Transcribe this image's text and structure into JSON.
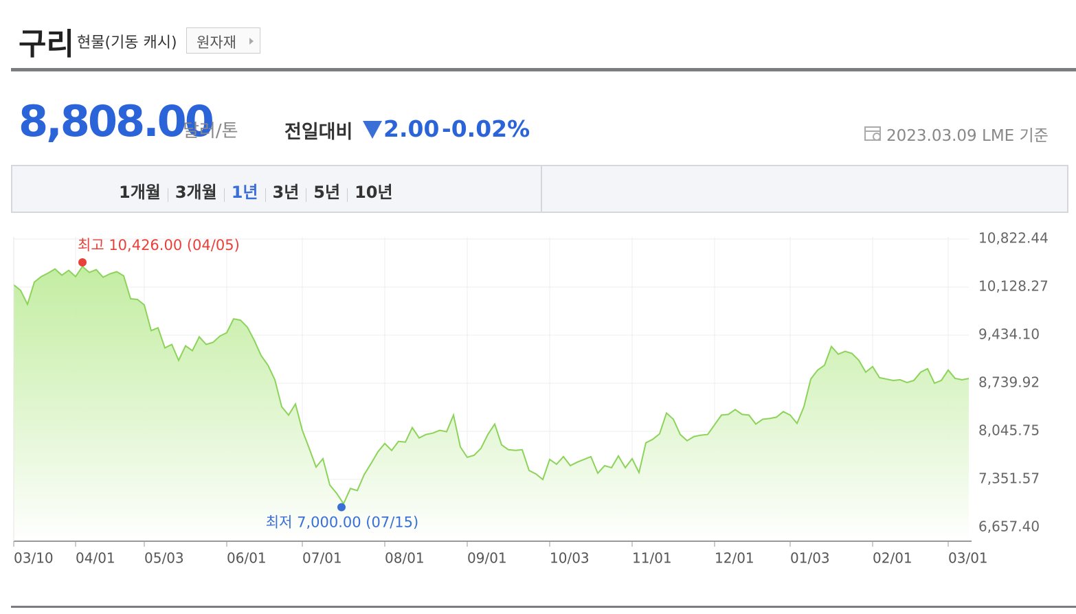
{
  "header": {
    "title": "구리",
    "subtitle": "현물(기동 캐시)",
    "button": "원자재"
  },
  "price": {
    "value": "8,808.00",
    "unit": "달러/톤",
    "change_label": "전일대비",
    "change": "2.00",
    "change_pct": "-0.02%",
    "date": "2023.03.09 LME 기준"
  },
  "tabs": {
    "items": [
      "1개월",
      "3개월",
      "1년",
      "3년",
      "5년",
      "10년"
    ],
    "selected": 2
  },
  "chart_data": {
    "type": "line",
    "color": "#8cd35a",
    "fill": true,
    "grid": true,
    "high_label": "최고 10,426.00 (04/05)",
    "high_color": "#e8413a",
    "low_label": "최저 7,000.00 (07/15)",
    "low_color": "#3a6fd8",
    "categories": [
      "03/10",
      null,
      null,
      null,
      null,
      null,
      null,
      null,
      null,
      "04/01",
      null,
      null,
      null,
      null,
      null,
      null,
      null,
      null,
      null,
      "05/03",
      null,
      null,
      null,
      null,
      null,
      null,
      null,
      null,
      null,
      null,
      null,
      "06/01",
      null,
      null,
      null,
      null,
      null,
      null,
      null,
      null,
      null,
      null,
      "07/01",
      null,
      null,
      null,
      null,
      null,
      null,
      null,
      null,
      null,
      null,
      null,
      "08/01",
      null,
      null,
      null,
      null,
      null,
      null,
      null,
      null,
      null,
      null,
      null,
      "09/01",
      null,
      null,
      null,
      null,
      null,
      null,
      null,
      null,
      null,
      null,
      null,
      "10/03",
      null,
      null,
      null,
      null,
      null,
      null,
      null,
      null,
      null,
      null,
      null,
      "11/01",
      null,
      null,
      null,
      null,
      null,
      null,
      null,
      null,
      null,
      null,
      null,
      "12/01",
      null,
      null,
      null,
      null,
      null,
      null,
      null,
      null,
      null,
      null,
      "01/03",
      null,
      null,
      null,
      null,
      null,
      null,
      null,
      null,
      null,
      null,
      null,
      "02/01",
      null,
      null,
      null,
      null,
      null,
      null,
      null,
      null,
      null,
      null,
      "03/01",
      null,
      null,
      null
    ],
    "values": [
      10160,
      10080,
      9880,
      10200,
      10280,
      10330,
      10390,
      10300,
      10370,
      10280,
      10426,
      10340,
      10380,
      10270,
      10320,
      10350,
      10290,
      9960,
      9950,
      9870,
      9500,
      9540,
      9250,
      9300,
      9070,
      9280,
      9210,
      9410,
      9300,
      9330,
      9420,
      9470,
      9670,
      9650,
      9550,
      9360,
      9140,
      9000,
      8790,
      8400,
      8280,
      8440,
      8060,
      7800,
      7530,
      7650,
      7270,
      7150,
      7000,
      7220,
      7190,
      7420,
      7580,
      7750,
      7870,
      7770,
      7900,
      7890,
      8100,
      7950,
      8000,
      8020,
      8060,
      8040,
      8280,
      7820,
      7670,
      7700,
      7800,
      8000,
      8150,
      7850,
      7780,
      7770,
      7780,
      7480,
      7430,
      7350,
      7640,
      7570,
      7680,
      7550,
      7600,
      7640,
      7680,
      7440,
      7550,
      7520,
      7690,
      7520,
      7650,
      7450,
      7880,
      7930,
      8010,
      8310,
      8220,
      8000,
      7910,
      7970,
      7990,
      8000,
      8140,
      8280,
      8290,
      8360,
      8290,
      8280,
      8150,
      8220,
      8230,
      8250,
      8330,
      8280,
      8160,
      8400,
      8800,
      8930,
      9000,
      9270,
      9160,
      9200,
      9170,
      9070,
      8900,
      8980,
      8820,
      8800,
      8780,
      8790,
      8750,
      8780,
      8900,
      8950,
      8740,
      8780,
      8930,
      8810,
      8790,
      8808
    ],
    "ylim": [
      6459,
      10852
    ],
    "yticks": [
      {
        "value": 6657.4,
        "label": "6,657.40"
      },
      {
        "value": 7351.57,
        "label": "7,351.57"
      },
      {
        "value": 8045.75,
        "label": "8,045.75"
      },
      {
        "value": 8739.92,
        "label": "8,739.92"
      },
      {
        "value": 9434.1,
        "label": "9,434.10"
      },
      {
        "value": 10128.27,
        "label": "10,128.27"
      },
      {
        "value": 10822.44,
        "label": "10,822.44"
      }
    ]
  }
}
